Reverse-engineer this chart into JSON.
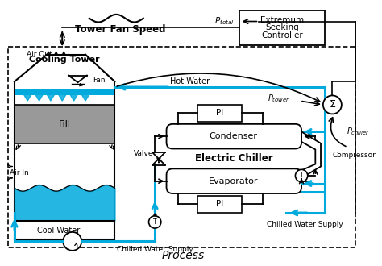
{
  "bg": "#ffffff",
  "lc": "#000000",
  "blue": "#00aadd",
  "title": "Process",
  "controller_text": [
    "Extremum",
    "Seeking",
    "Controller"
  ],
  "cooling_tower_label": "Cooling Tower",
  "chiller_label": "Electric Chiller",
  "condenser_label": "Condenser",
  "evaporator_label": "Evaporator",
  "compressor_label": "Compressor",
  "fan_label": "Fan",
  "air_out_label": "Air Out",
  "air_in_label": "Air In",
  "cool_water_label": "Cool Water",
  "hot_water_label": "Hot Water",
  "valve_label": "Valve",
  "fill_label": "Fill",
  "tower_fan_speed_label": "Tower Fan Speed",
  "chilled_water_supply_left": "Chilled Water Supply",
  "chilled_water_supply_right": "Chilled Water Supply",
  "pi_label": "PI"
}
